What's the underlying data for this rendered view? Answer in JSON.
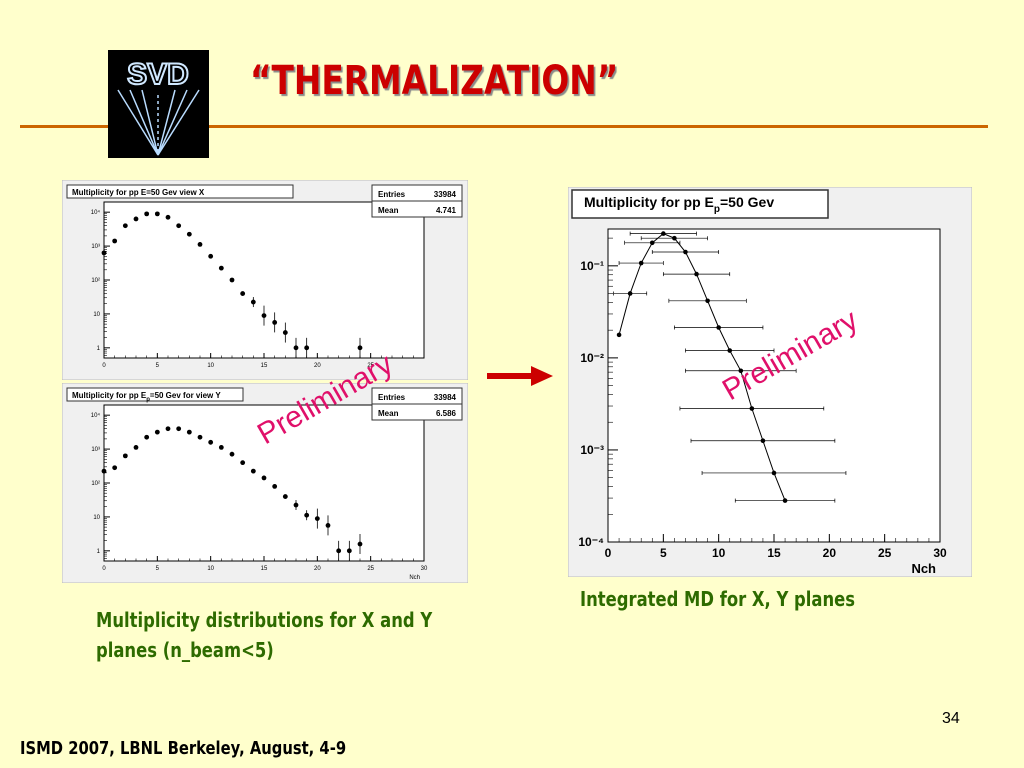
{
  "slide": {
    "title": "“THERMALIZATION”",
    "logo_text": "SVD",
    "caption_left_line1": "Multiplicity distributions for X and Y",
    "caption_left_line2": "planes (n_beam<5)",
    "caption_right": "Integrated MD for X, Y planes",
    "page_number": "34",
    "footer": "ISMD 2007, LBNL Berkeley,  August, 4-9",
    "watermark": "Preliminary",
    "colors": {
      "title": "#cc0000",
      "rule": "#cc6600",
      "caption": "#2e6b00",
      "watermark": "#e0106a",
      "arrow": "#cc0000",
      "background": "#ffffcc"
    }
  },
  "chart_data": [
    {
      "type": "scatter",
      "title": "Multiplicity for pp E=50 Gev view X",
      "stats": [
        {
          "label": "Entries",
          "value": "33984"
        },
        {
          "label": "Mean",
          "value": "4.741"
        }
      ],
      "xlabel": "",
      "xlim": [
        0,
        30
      ],
      "ylim_log10": [
        -0.3,
        4.3
      ],
      "xticks": [
        "0",
        "5",
        "10",
        "15",
        "20",
        "25"
      ],
      "yticks": [
        {
          "v": 0,
          "label": "1"
        },
        {
          "v": 1,
          "label": "10"
        },
        {
          "v": 2,
          "label": "10²"
        },
        {
          "v": 3,
          "label": "10³"
        },
        {
          "v": 4,
          "label": "10⁴"
        }
      ],
      "x": [
        0,
        1,
        2,
        3,
        4,
        5,
        6,
        7,
        8,
        9,
        10,
        11,
        12,
        13,
        14,
        15,
        16,
        17,
        18,
        19,
        24
      ],
      "y_log10": [
        2.8,
        3.15,
        3.6,
        3.8,
        3.95,
        3.95,
        3.85,
        3.6,
        3.35,
        3.05,
        2.7,
        2.35,
        2.0,
        1.6,
        1.35,
        0.95,
        0.75,
        0.45,
        0.0,
        0.0,
        0.0
      ]
    },
    {
      "type": "scatter",
      "title": "Multiplicity for pp E",
      "title_sub": "p",
      "title_tail": "=50 Gev for view Y",
      "stats": [
        {
          "label": "Entries",
          "value": "33984"
        },
        {
          "label": "Mean",
          "value": "6.586"
        }
      ],
      "xlabel": "Nch",
      "xlim": [
        0,
        30
      ],
      "ylim_log10": [
        -0.3,
        4.3
      ],
      "xticks": [
        "0",
        "5",
        "10",
        "15",
        "20",
        "25",
        "30"
      ],
      "yticks": [
        {
          "v": 0,
          "label": "1"
        },
        {
          "v": 1,
          "label": "10"
        },
        {
          "v": 2,
          "label": "10²"
        },
        {
          "v": 3,
          "label": "10³"
        },
        {
          "v": 4,
          "label": "10⁴"
        }
      ],
      "x": [
        0,
        1,
        2,
        3,
        4,
        5,
        6,
        7,
        8,
        9,
        10,
        11,
        12,
        13,
        14,
        15,
        16,
        17,
        18,
        19,
        20,
        21,
        22,
        23,
        24
      ],
      "y_log10": [
        2.35,
        2.45,
        2.8,
        3.05,
        3.35,
        3.5,
        3.6,
        3.6,
        3.5,
        3.35,
        3.2,
        3.05,
        2.85,
        2.6,
        2.35,
        2.15,
        1.9,
        1.6,
        1.35,
        1.05,
        0.95,
        0.75,
        0.0,
        0.0,
        0.2
      ]
    },
    {
      "type": "line",
      "title": "Multiplicity for pp E",
      "title_sub": "p",
      "title_tail": "=50 Gev",
      "xlabel": "Nch",
      "xlim": [
        0,
        30
      ],
      "ylim_log10": [
        -4,
        -0.6
      ],
      "xticks": [
        "0",
        "5",
        "10",
        "15",
        "20",
        "25",
        "30"
      ],
      "yticks": [
        {
          "v": -4,
          "label": "10⁻⁴"
        },
        {
          "v": -3,
          "label": "10⁻³"
        },
        {
          "v": -2,
          "label": "10⁻²"
        },
        {
          "v": -1,
          "label": "10⁻¹"
        }
      ],
      "x": [
        1,
        2,
        3,
        4,
        5,
        6,
        7,
        8,
        9,
        10,
        11,
        12,
        13,
        14,
        15,
        16
      ],
      "y_log10": [
        -1.75,
        -1.3,
        -0.97,
        -0.75,
        -0.65,
        -0.7,
        -0.85,
        -1.09,
        -1.38,
        -1.67,
        -1.92,
        -2.14,
        -2.55,
        -2.9,
        -3.25,
        -3.55
      ],
      "x_err": [
        0,
        1.5,
        2,
        2.5,
        3,
        3,
        3,
        3,
        3.5,
        4,
        4,
        5,
        6.5,
        6.5,
        6.5,
        4.5
      ]
    }
  ]
}
